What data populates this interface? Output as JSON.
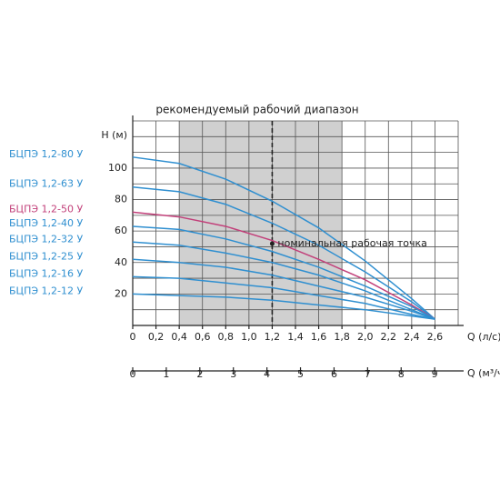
{
  "chart_data": {
    "type": "line",
    "title": "рекомендуемый рабочий диапазон",
    "annotation": "номинальная рабочая точка",
    "nominal_point": [
      1.2,
      52
    ],
    "range": [
      0.4,
      1.8
    ],
    "xlabel": "Q (л/с)",
    "ylabel": "H (м)",
    "x2label": "Q (м³/ч)",
    "xlim": [
      0,
      2.8
    ],
    "ylim": [
      0,
      130
    ],
    "x2lim": [
      0,
      9.7
    ],
    "xticks": [
      0,
      {
        "value": 0.2,
        "label": "0,2"
      },
      {
        "value": 0.4,
        "label": "0,4"
      },
      {
        "value": 0.6,
        "label": "0,6"
      },
      {
        "value": 0.8,
        "label": "0,8"
      },
      {
        "value": 1.0,
        "label": "1,0"
      },
      {
        "value": 1.2,
        "label": "1,2"
      },
      {
        "value": 1.4,
        "label": "1,4"
      },
      {
        "value": 1.6,
        "label": "1,6"
      },
      {
        "value": 1.8,
        "label": "1,8"
      },
      {
        "value": 2.0,
        "label": "2,0"
      },
      {
        "value": 2.2,
        "label": "2,2"
      },
      {
        "value": 2.4,
        "label": "2,4"
      },
      {
        "value": 2.6,
        "label": "2,6"
      }
    ],
    "yticks": [
      20,
      40,
      60,
      80,
      100
    ],
    "ygrid": [
      10,
      20,
      30,
      40,
      50,
      60,
      70,
      80,
      90,
      100,
      110,
      120,
      130
    ],
    "x2ticks": [
      0,
      1,
      2,
      3,
      4,
      5,
      6,
      7,
      8,
      9
    ],
    "x": [
      0,
      0.4,
      0.8,
      1.2,
      1.6,
      2.0,
      2.4,
      2.6
    ],
    "series": [
      {
        "name": "БЦПЭ 1,2-80 У",
        "color": "#2f8fd0",
        "values": [
          107,
          103,
          93,
          79,
          62,
          41,
          17,
          4
        ]
      },
      {
        "name": "БЦПЭ 1,2-63 У",
        "color": "#2f8fd0",
        "values": [
          88,
          85,
          77,
          65,
          51,
          34,
          15,
          4
        ]
      },
      {
        "name": "БЦПЭ 1,2-50 У",
        "color": "#c2407a",
        "values": [
          72,
          69,
          63,
          54,
          42,
          29,
          13,
          4
        ]
      },
      {
        "name": "БЦПЭ 1,2-40 У",
        "color": "#2f8fd0",
        "values": [
          63,
          61,
          55,
          47,
          37,
          25,
          12,
          4
        ]
      },
      {
        "name": "БЦПЭ 1,2-32 У",
        "color": "#2f8fd0",
        "values": [
          53,
          51,
          46,
          40,
          32,
          22,
          10,
          4
        ]
      },
      {
        "name": "БЦПЭ 1,2-25 У",
        "color": "#2f8fd0",
        "values": [
          42,
          40,
          37,
          32,
          25,
          18,
          9,
          4
        ]
      },
      {
        "name": "БЦПЭ 1,2-16 У",
        "color": "#2f8fd0",
        "values": [
          31,
          30,
          27,
          24,
          19,
          14,
          7,
          4
        ]
      },
      {
        "name": "БЦПЭ 1,2-12 У",
        "color": "#2f8fd0",
        "values": [
          20,
          19,
          18,
          16,
          13,
          10,
          6,
          4
        ]
      }
    ]
  }
}
